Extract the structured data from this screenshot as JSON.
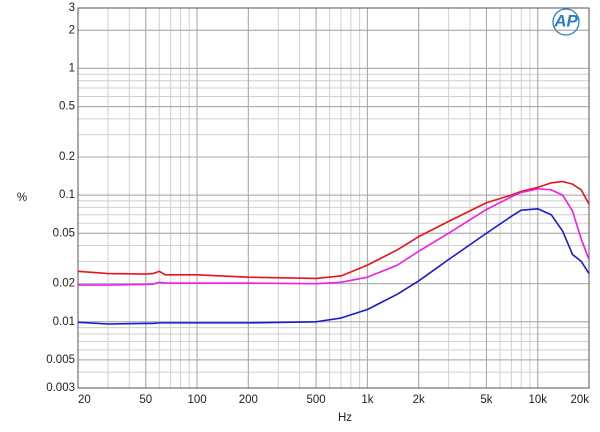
{
  "chart_data": {
    "type": "line",
    "logo": "AP",
    "xlabel": "Hz",
    "ylabel": "%",
    "xscale": "log",
    "yscale": "log",
    "grid": true,
    "xlim": [
      20,
      20000
    ],
    "ylim": [
      0.003,
      3
    ],
    "xticks": [
      20,
      50,
      100,
      200,
      500,
      {
        "value": 1000,
        "label": "1k"
      },
      {
        "value": 2000,
        "label": "2k"
      },
      {
        "value": 5000,
        "label": "5k"
      },
      {
        "value": 10000,
        "label": "10k"
      },
      {
        "value": 20000,
        "label": "20k"
      }
    ],
    "yticks": [
      0.003,
      0.005,
      0.01,
      0.02,
      0.05,
      0.1,
      0.2,
      0.5,
      1,
      2,
      3
    ],
    "x": [
      20,
      30,
      50,
      55,
      60,
      65,
      100,
      200,
      500,
      700,
      1000,
      1500,
      2000,
      3000,
      5000,
      7000,
      8000,
      10000,
      12000,
      14000,
      16000,
      18000,
      20000
    ],
    "series": [
      {
        "color": "#e8141c",
        "values": [
          0.025,
          0.024,
          0.0238,
          0.024,
          0.025,
          0.0235,
          0.0235,
          0.0225,
          0.022,
          0.023,
          0.028,
          0.037,
          0.047,
          0.062,
          0.087,
          0.1,
          0.107,
          0.115,
          0.125,
          0.128,
          0.122,
          0.11,
          0.085
        ]
      },
      {
        "color": "#ee1ee6",
        "values": [
          0.0195,
          0.0195,
          0.0197,
          0.0198,
          0.0205,
          0.0202,
          0.0202,
          0.0202,
          0.02,
          0.0205,
          0.0225,
          0.028,
          0.036,
          0.05,
          0.077,
          0.097,
          0.105,
          0.112,
          0.11,
          0.1,
          0.075,
          0.045,
          0.031
        ]
      },
      {
        "color": "#1a1acf",
        "values": [
          0.0099,
          0.0096,
          0.0097,
          0.0097,
          0.0098,
          0.0098,
          0.0098,
          0.0098,
          0.01,
          0.0107,
          0.0125,
          0.0165,
          0.021,
          0.031,
          0.05,
          0.068,
          0.076,
          0.078,
          0.07,
          0.052,
          0.034,
          0.03,
          0.024
        ]
      }
    ]
  }
}
